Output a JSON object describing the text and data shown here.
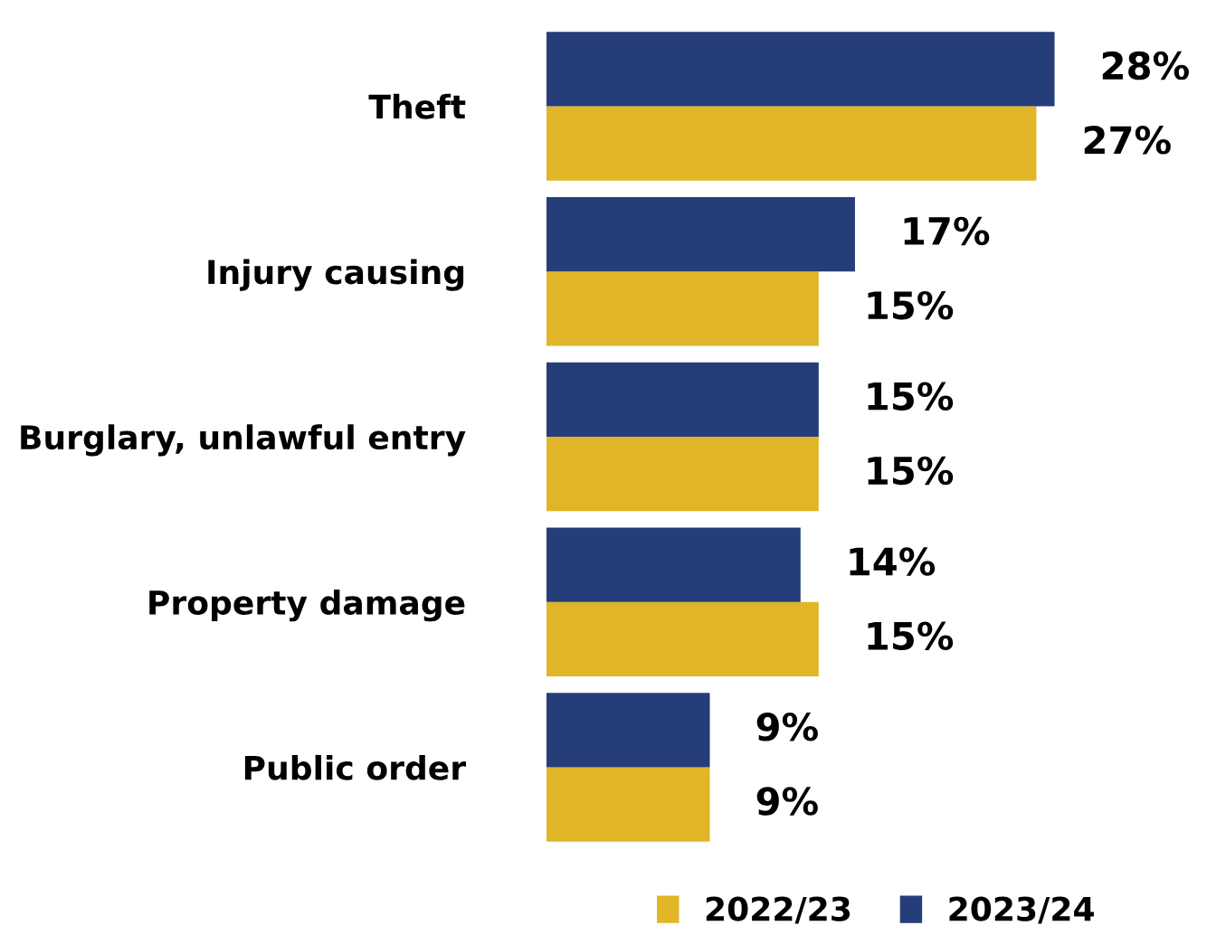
{
  "chart_data": {
    "type": "bar",
    "orientation": "horizontal",
    "categories": [
      "Theft",
      "Injury causing",
      "Burglary, unlawful entry",
      "Property damage",
      "Public order"
    ],
    "series": [
      {
        "name": "2022/23",
        "color": "#e0b628",
        "values": [
          27,
          15,
          15,
          15,
          9
        ],
        "value_labels": [
          "27%",
          "15%",
          "15%",
          "15%",
          "9%"
        ]
      },
      {
        "name": "2023/24",
        "color": "#253d78",
        "values": [
          28,
          17,
          15,
          14,
          9
        ],
        "value_labels": [
          "28%",
          "17%",
          "15%",
          "14%",
          "9%"
        ]
      }
    ],
    "legend": "bottom",
    "grid": false
  }
}
